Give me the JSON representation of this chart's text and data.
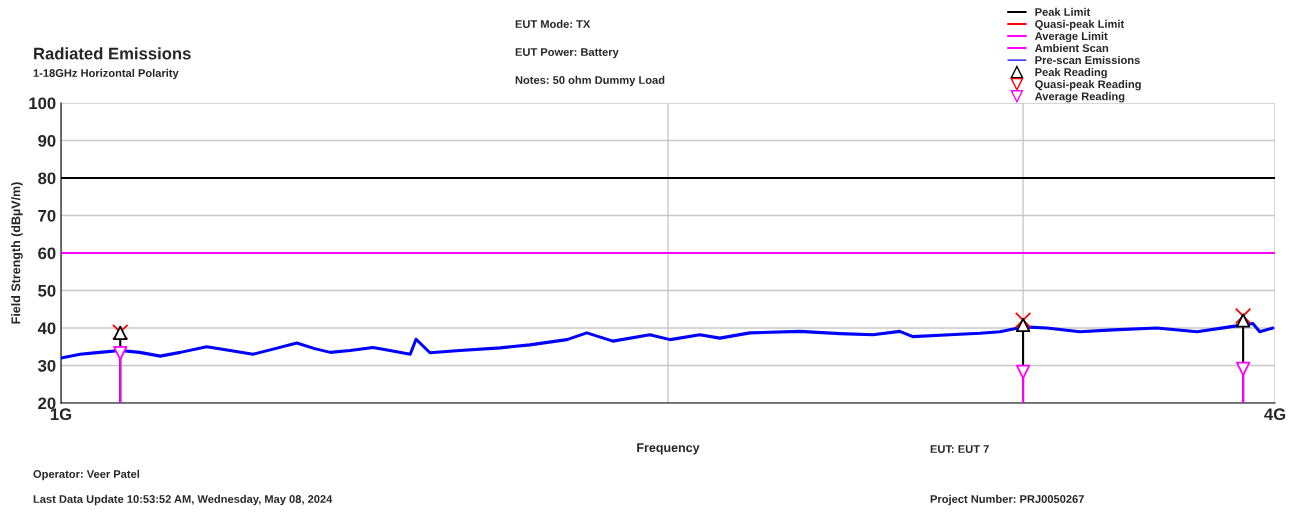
{
  "chart_data": {
    "type": "line",
    "title": "Radiated Emissions",
    "subtitle": "1-18GHz Horizontal Polarity",
    "xlabel": "Frequency",
    "ylabel": "Field Strength (dBµV/m)",
    "annotations": [
      "EUT Mode: TX",
      "EUT Power: Battery",
      "Notes: 50 ohm Dummy Load",
      "EUT: EUT 7",
      "Operator: Veer Patel",
      "Last Data Update 10:53:52 AM, Wednesday, May 08, 2024",
      "Project Number: PRJ0050267"
    ],
    "log": "x",
    "xlim": [
      1,
      4
    ],
    "xticks": [
      {
        "value": 1,
        "label": "1G"
      },
      {
        "value": 2,
        "label": null
      },
      {
        "value": 3,
        "label": null
      },
      {
        "value": 4,
        "label": "4G"
      }
    ],
    "ylim": [
      20,
      100
    ],
    "yticks": [
      20,
      30,
      40,
      50,
      60,
      70,
      80,
      90,
      100
    ],
    "grid": true,
    "legend": "top right",
    "series": [
      {
        "name": "Peak Limit",
        "color": "#000000",
        "x": [
          1,
          4
        ],
        "values": [
          80,
          80
        ]
      },
      {
        "name": "Quasi-peak Limit",
        "color": "#ff0000"
      },
      {
        "name": "Average Limit",
        "color": "#ff00ff",
        "x": [
          1,
          4
        ],
        "values": [
          60,
          60
        ]
      },
      {
        "name": "Ambient Scan",
        "color": "#ff00ff"
      },
      {
        "name": "Pre-scan Emissions",
        "color": "#0000ff",
        "x": [
          1.0,
          1.022,
          1.045,
          1.07,
          1.094,
          1.12,
          1.146,
          1.181,
          1.213,
          1.245,
          1.277,
          1.309,
          1.336,
          1.36,
          1.391,
          1.428,
          1.456,
          1.49,
          1.5,
          1.524,
          1.577,
          1.651,
          1.708,
          1.782,
          1.823,
          1.878,
          1.959,
          2.005,
          2.074,
          2.122,
          2.196,
          2.325,
          2.434,
          2.527,
          2.606,
          2.645,
          2.759,
          2.856,
          2.922,
          3.0,
          3.083,
          3.201,
          3.324,
          3.495,
          3.659,
          3.799,
          3.9,
          3.931,
          3.99
        ],
        "values": [
          32,
          33,
          33.5,
          34,
          33.5,
          32.5,
          33.5,
          35,
          34,
          33,
          34.5,
          36,
          34.5,
          33.5,
          34,
          34.8,
          34,
          33,
          37,
          33.4,
          34,
          34.7,
          35.5,
          36.9,
          38.7,
          36.5,
          38.2,
          36.9,
          38.2,
          37.3,
          38.7,
          39.1,
          38.5,
          38.2,
          39.1,
          37.7,
          38.2,
          38.6,
          39,
          40.3,
          40,
          39,
          39.5,
          40,
          39,
          40.3,
          41.2,
          39,
          40
        ]
      },
      {
        "type": "scatter",
        "marker": "cross",
        "color": "#ff0000",
        "x": [
          1.07,
          3.0,
          3.857
        ],
        "values": [
          38.9,
          42.1,
          43.2
        ]
      },
      {
        "name": "Peak Reading",
        "type": "scatter",
        "marker": "triangle",
        "color": "#000000",
        "x": [
          1.07,
          3.0,
          3.857
        ],
        "values": [
          38.7,
          40.8,
          42
        ],
        "errors": [
          [
            20,
            38.7
          ],
          [
            20,
            40.8
          ],
          [
            20,
            42
          ]
        ]
      },
      {
        "name": "Quasi-peak Reading",
        "type": "scatter",
        "marker": "triangle_down",
        "color": "#ff0000"
      },
      {
        "name": "Average Reading",
        "type": "scatter",
        "marker": "triangle_down",
        "color": "#ff00ff",
        "x": [
          1.07,
          3.0,
          3.857
        ],
        "values": [
          33.3,
          28.3,
          29.1
        ],
        "errors": [
          [
            20,
            33.3
          ],
          [
            20,
            28.3
          ],
          [
            20,
            29.1
          ]
        ]
      }
    ]
  }
}
